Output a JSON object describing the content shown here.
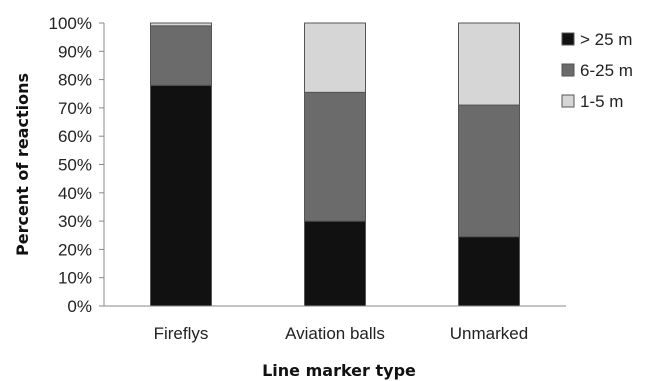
{
  "chart_data": {
    "type": "bar",
    "stacked": true,
    "categories": [
      "Fireflys",
      "Aviation balls",
      "Unmarked"
    ],
    "series": [
      {
        "name": "> 25 m",
        "values": [
          78,
          30,
          24.5
        ],
        "color": "#111111"
      },
      {
        "name": "6-25 m",
        "values": [
          21,
          45.5,
          46.5
        ],
        "color": "#6b6b6b"
      },
      {
        "name": "1-5 m",
        "values": [
          1,
          24.5,
          29
        ],
        "color": "#d6d6d6"
      }
    ],
    "legend_order": [
      0,
      1,
      2
    ],
    "title": "",
    "xlabel": "Line marker type",
    "ylabel": "Percent of reactions",
    "ylim": [
      0,
      100
    ],
    "yticks": [
      0,
      10,
      20,
      30,
      40,
      50,
      60,
      70,
      80,
      90,
      100
    ],
    "ytick_labels": [
      "0%",
      "10%",
      "20%",
      "30%",
      "40%",
      "50%",
      "60%",
      "70%",
      "80%",
      "90%",
      "100%"
    ],
    "grid": false,
    "legend_position": "right"
  }
}
